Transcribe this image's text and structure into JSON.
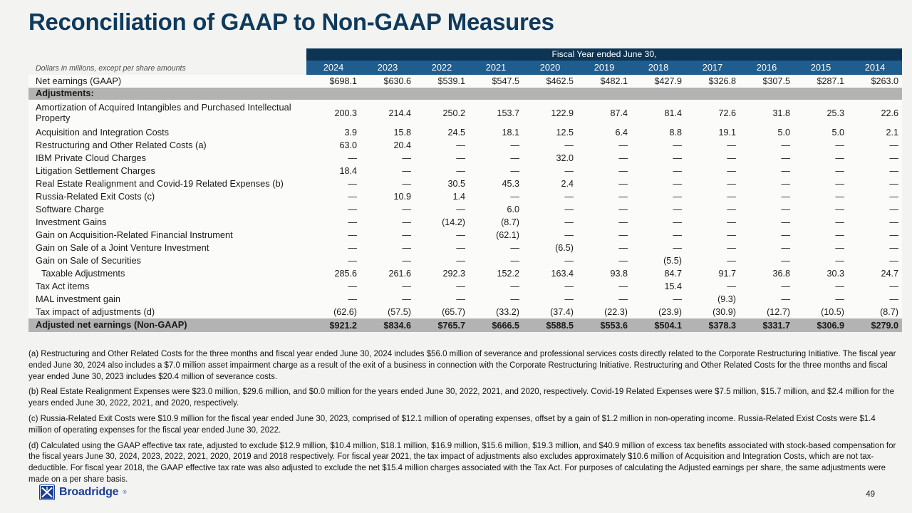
{
  "slide": {
    "title": "Reconciliation of GAAP to Non-GAAP Measures",
    "colors": {
      "title_navy": "#0e3a5c",
      "header_dark_navy": "#0d3453",
      "header_blue": "#1f5d8f",
      "band_gray": "#b3b3b3",
      "logo_blue": "#1a3e94"
    }
  },
  "table": {
    "note_label": "Dollars in millions, except per share amounts",
    "span_header": "Fiscal Year ended June 30,",
    "years": [
      "2024",
      "2023",
      "2022",
      "2021",
      "2020",
      "2019",
      "2018",
      "2017",
      "2016",
      "2015",
      "2014"
    ],
    "rows": [
      {
        "label": "Net earnings (GAAP)",
        "type": "data",
        "values": [
          "$698.1",
          "$630.6",
          "$539.1",
          "$547.5",
          "$462.5",
          "$482.1",
          "$427.9",
          "$326.8",
          "$307.5",
          "$287.1",
          "$263.0"
        ]
      },
      {
        "label": "Adjustments:",
        "type": "band",
        "values": []
      },
      {
        "label": "Amortization of Acquired Intangibles and Purchased Intellectual Property",
        "type": "data",
        "two_line": true,
        "values": [
          "200.3",
          "214.4",
          "250.2",
          "153.7",
          "122.9",
          "87.4",
          "81.4",
          "72.6",
          "31.8",
          "25.3",
          "22.6"
        ]
      },
      {
        "label": "Acquisition and Integration Costs",
        "type": "data",
        "values": [
          "3.9",
          "15.8",
          "24.5",
          "18.1",
          "12.5",
          "6.4",
          "8.8",
          "19.1",
          "5.0",
          "5.0",
          "2.1"
        ]
      },
      {
        "label": "Restructuring and Other Related Costs (a)",
        "type": "data",
        "values": [
          "63.0",
          "20.4",
          "—",
          "—",
          "—",
          "—",
          "—",
          "—",
          "—",
          "—",
          "—"
        ]
      },
      {
        "label": "IBM Private Cloud Charges",
        "type": "data",
        "values": [
          "—",
          "—",
          "—",
          "—",
          "32.0",
          "—",
          "—",
          "—",
          "—",
          "—",
          "—"
        ]
      },
      {
        "label": "Litigation Settlement Charges",
        "type": "data",
        "values": [
          "18.4",
          "—",
          "—",
          "—",
          "—",
          "—",
          "—",
          "—",
          "—",
          "—",
          "—"
        ]
      },
      {
        "label": "Real Estate Realignment and Covid-19 Related Expenses (b)",
        "type": "data",
        "values": [
          "—",
          "—",
          "30.5",
          "45.3",
          "2.4",
          "—",
          "—",
          "—",
          "—",
          "—",
          "—"
        ]
      },
      {
        "label": "Russia-Related Exit Costs (c)",
        "type": "data",
        "values": [
          "—",
          "10.9",
          "1.4",
          "—",
          "—",
          "—",
          "—",
          "—",
          "—",
          "—",
          "—"
        ]
      },
      {
        "label": "Software Charge",
        "type": "data",
        "values": [
          "—",
          "—",
          "—",
          "6.0",
          "—",
          "—",
          "—",
          "—",
          "—",
          "—",
          "—"
        ]
      },
      {
        "label": "Investment Gains",
        "type": "data",
        "values": [
          "—",
          "—",
          "(14.2)",
          "(8.7)",
          "—",
          "—",
          "—",
          "—",
          "—",
          "—",
          "—"
        ]
      },
      {
        "label": "Gain on Acquisition-Related Financial Instrument",
        "type": "data",
        "values": [
          "—",
          "—",
          "—",
          "(62.1)",
          "—",
          "—",
          "—",
          "—",
          "—",
          "—",
          "—"
        ]
      },
      {
        "label": "Gain on Sale of a Joint Venture Investment",
        "type": "data",
        "values": [
          "—",
          "—",
          "—",
          "—",
          "(6.5)",
          "—",
          "—",
          "—",
          "—",
          "—",
          "—"
        ]
      },
      {
        "label": "Gain on Sale of Securities",
        "type": "data",
        "values": [
          "—",
          "—",
          "—",
          "—",
          "—",
          "—",
          "(5.5)",
          "—",
          "—",
          "—",
          "—"
        ]
      },
      {
        "label": "Taxable Adjustments",
        "type": "data",
        "indent": true,
        "values": [
          "285.6",
          "261.6",
          "292.3",
          "152.2",
          "163.4",
          "93.8",
          "84.7",
          "91.7",
          "36.8",
          "30.3",
          "24.7"
        ]
      },
      {
        "label": "Tax Act items",
        "type": "data",
        "values": [
          "—",
          "—",
          "—",
          "—",
          "—",
          "—",
          "15.4",
          "—",
          "—",
          "—",
          "—"
        ]
      },
      {
        "label": "MAL investment gain",
        "type": "data",
        "values": [
          "—",
          "—",
          "—",
          "—",
          "—",
          "—",
          "—",
          "(9.3)",
          "—",
          "—",
          "—"
        ]
      },
      {
        "label": "Tax impact of adjustments (d)",
        "type": "data",
        "values": [
          "(62.6)",
          "(57.5)",
          "(65.7)",
          "(33.2)",
          "(37.4)",
          "(22.3)",
          "(23.9)",
          "(30.9)",
          "(12.7)",
          "(10.5)",
          "(8.7)"
        ]
      },
      {
        "label": "Adjusted net earnings (Non-GAAP)",
        "type": "total",
        "values": [
          "$921.2",
          "$834.6",
          "$765.7",
          "$666.5",
          "$588.5",
          "$553.6",
          "$504.1",
          "$378.3",
          "$331.7",
          "$306.9",
          "$279.0"
        ]
      }
    ]
  },
  "footnotes": {
    "items": [
      "(a) Restructuring and Other Related Costs for the three months and fiscal year ended June 30, 2024 includes $56.0 million of severance and professional services costs directly related to the Corporate Restructuring Initiative. The fiscal year ended June 30, 2024 also includes a $7.0 million asset impairment charge as a result of the exit of a business in connection with the Corporate Restructuring Initiative. Restructuring and Other Related Costs for the three months and fiscal year ended June 30, 2023 includes $20.4 million of severance costs.",
      "(b) Real Estate Realignment Expenses were $23.0 million, $29.6 million, and $0.0 million for the years ended June 30, 2022, 2021, and 2020, respectively. Covid-19 Related Expenses were $7.5 million, $15.7 million, and $2.4 million for the years ended June 30, 2022, 2021, and 2020, respectively.",
      "(c) Russia-Related Exit Costs were $10.9 million for the fiscal year ended June 30, 2023, comprised of $12.1 million of operating expenses, offset by a gain of $1.2 million in non-operating income. Russia-Related Exist Costs were $1.4 million of operating expenses for the fiscal year ended June 30, 2022.",
      "(d) Calculated using the GAAP effective tax rate, adjusted to exclude $12.9 million, $10.4 million, $18.1 million, $16.9 million, $15.6 million, $19.3 million, and $40.9 million of excess tax benefits associated with stock-based compensation for the fiscal years June 30, 2024, 2023, 2022, 2021, 2020, 2019 and 2018 respectively. For fiscal year 2021, the tax impact of adjustments also excludes approximately $10.6 million of Acquisition and Integration Costs, which are not tax-deductible. For fiscal year 2018, the GAAP effective tax rate was also adjusted to exclude the net $15.4 million charges associated with the Tax Act. For purposes of calculating the Adjusted earnings per share, the same adjustments were made on a per share basis."
    ]
  },
  "footer": {
    "logo_text": "Broadridge",
    "reg_mark": "®",
    "page_number": "49"
  }
}
